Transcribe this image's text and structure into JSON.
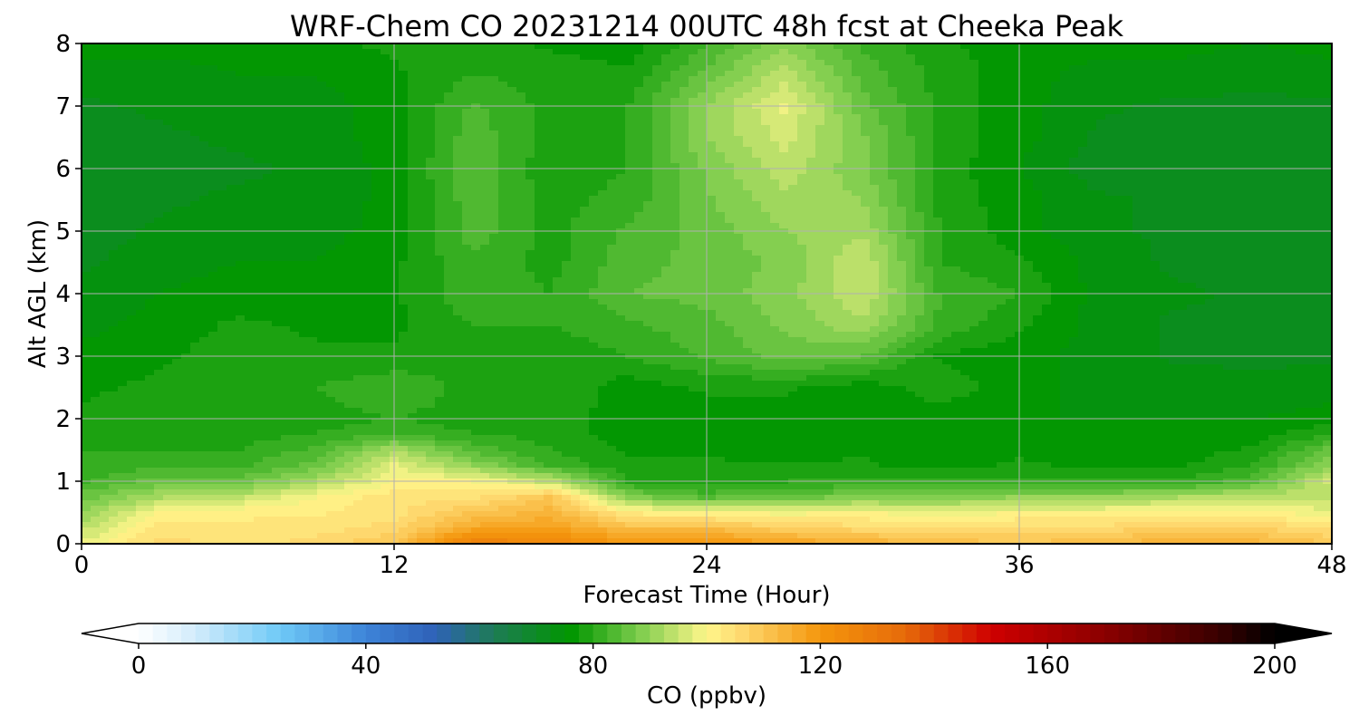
{
  "chart_data": {
    "type": "heatmap",
    "title": "WRF-Chem CO  20231214 00UTC 48h fcst at Cheeka Peak",
    "xlabel": "Forecast Time (Hour)",
    "ylabel": "Alt AGL (km)",
    "xlim": [
      0,
      48
    ],
    "ylim": [
      0,
      8
    ],
    "xticks": [
      0,
      12,
      24,
      36,
      48
    ],
    "yticks": [
      0,
      1,
      2,
      3,
      4,
      5,
      6,
      7,
      8
    ],
    "grid": true,
    "x": [
      0,
      3,
      6,
      9,
      12,
      15,
      18,
      21,
      24,
      27,
      30,
      33,
      36,
      39,
      42,
      45,
      48
    ],
    "y": [
      0,
      0.25,
      0.5,
      0.75,
      1,
      1.25,
      1.5,
      1.75,
      2,
      2.5,
      3,
      3.5,
      4,
      4.5,
      5,
      5.5,
      6,
      6.5,
      7,
      7.5,
      8
    ],
    "z": [
      [
        98,
        106,
        104,
        106,
        110,
        128,
        125,
        120,
        121,
        118,
        115,
        112,
        110,
        112,
        115,
        114,
        110
      ],
      [
        94,
        104,
        103,
        104,
        106,
        116,
        118,
        112,
        112,
        108,
        106,
        105,
        106,
        106,
        108,
        108,
        104
      ],
      [
        90,
        100,
        102,
        102,
        104,
        110,
        114,
        102,
        100,
        99,
        100,
        98,
        100,
        100,
        101,
        101,
        98
      ],
      [
        86,
        92,
        94,
        100,
        104,
        104,
        110,
        88,
        84,
        86,
        88,
        88,
        90,
        90,
        92,
        94,
        94
      ],
      [
        82,
        86,
        86,
        92,
        100,
        100,
        94,
        80,
        78,
        80,
        80,
        82,
        80,
        80,
        80,
        84,
        96
      ],
      [
        80,
        82,
        82,
        86,
        98,
        90,
        82,
        78,
        78,
        78,
        78,
        76,
        78,
        77,
        77,
        80,
        90
      ],
      [
        80,
        80,
        80,
        83,
        92,
        84,
        80,
        77,
        77,
        76,
        77,
        76,
        77,
        76,
        76,
        78,
        86
      ],
      [
        79,
        79,
        79,
        80,
        82,
        80,
        79,
        76,
        76,
        76,
        76,
        76,
        76,
        76,
        76,
        76,
        80
      ],
      [
        78,
        79,
        79,
        79,
        80,
        79,
        79,
        76,
        76,
        76,
        76,
        76,
        75,
        75,
        75,
        75,
        76
      ],
      [
        77,
        78,
        80,
        80,
        82,
        79,
        80,
        76,
        78,
        78,
        76,
        79,
        76,
        74,
        74,
        73,
        74
      ],
      [
        76,
        77,
        79,
        78,
        78,
        80,
        78,
        80,
        83,
        86,
        85,
        77,
        76,
        74,
        72,
        72,
        72
      ],
      [
        74,
        76,
        78,
        77,
        77,
        80,
        80,
        82,
        84,
        88,
        92,
        82,
        78,
        74,
        72,
        72,
        72
      ],
      [
        73,
        75,
        76,
        76,
        77,
        82,
        80,
        85,
        86,
        89,
        95,
        82,
        80,
        74,
        73,
        72,
        72
      ],
      [
        72,
        74,
        75,
        75,
        77,
        82,
        79,
        84,
        86,
        88,
        95,
        80,
        78,
        74,
        72,
        71,
        72
      ],
      [
        71,
        73,
        74,
        74,
        76,
        84,
        79,
        83,
        86,
        90,
        92,
        80,
        76,
        73,
        72,
        71,
        71
      ],
      [
        71,
        72,
        73,
        73,
        76,
        84,
        79,
        81,
        87,
        92,
        90,
        79,
        76,
        73,
        72,
        71,
        71
      ],
      [
        70,
        72,
        72,
        73,
        76,
        85,
        78,
        80,
        88,
        94,
        88,
        79,
        75,
        71,
        70,
        70,
        70
      ],
      [
        71,
        72,
        73,
        74,
        76,
        84,
        79,
        80,
        90,
        96,
        88,
        79,
        76,
        72,
        71,
        70,
        71
      ],
      [
        72,
        73,
        74,
        74,
        76,
        83,
        79,
        80,
        90,
        98,
        86,
        79,
        76,
        73,
        72,
        72,
        72
      ],
      [
        74,
        74,
        75,
        75,
        77,
        80,
        79,
        78,
        86,
        94,
        84,
        79,
        76,
        74,
        74,
        73,
        74
      ],
      [
        76,
        76,
        76,
        77,
        78,
        79,
        77,
        76,
        82,
        89,
        82,
        78,
        76,
        76,
        76,
        75,
        76
      ]
    ],
    "colorbar": {
      "label": "CO  (ppbv)",
      "min": 0,
      "max": 200,
      "step": 2.5,
      "ticks": [
        0,
        40,
        80,
        120,
        160,
        200
      ],
      "extend": "both",
      "colors": [
        {
          "v": 0,
          "c": "#ffffff"
        },
        {
          "v": 10,
          "c": "#d2ecfb"
        },
        {
          "v": 25,
          "c": "#6ec9f7"
        },
        {
          "v": 40,
          "c": "#3d84d8"
        },
        {
          "v": 52,
          "c": "#2f62b8"
        },
        {
          "v": 63,
          "c": "#1d7c52"
        },
        {
          "v": 76,
          "c": "#009600"
        },
        {
          "v": 88,
          "c": "#7ccc4c"
        },
        {
          "v": 100,
          "c": "#fff68a"
        },
        {
          "v": 106,
          "c": "#fed970"
        },
        {
          "v": 120,
          "c": "#f4960c"
        },
        {
          "v": 135,
          "c": "#e66a0a"
        },
        {
          "v": 150,
          "c": "#cf0000"
        },
        {
          "v": 170,
          "c": "#8b0000"
        },
        {
          "v": 190,
          "c": "#3a0000"
        },
        {
          "v": 200,
          "c": "#000000"
        }
      ]
    }
  }
}
